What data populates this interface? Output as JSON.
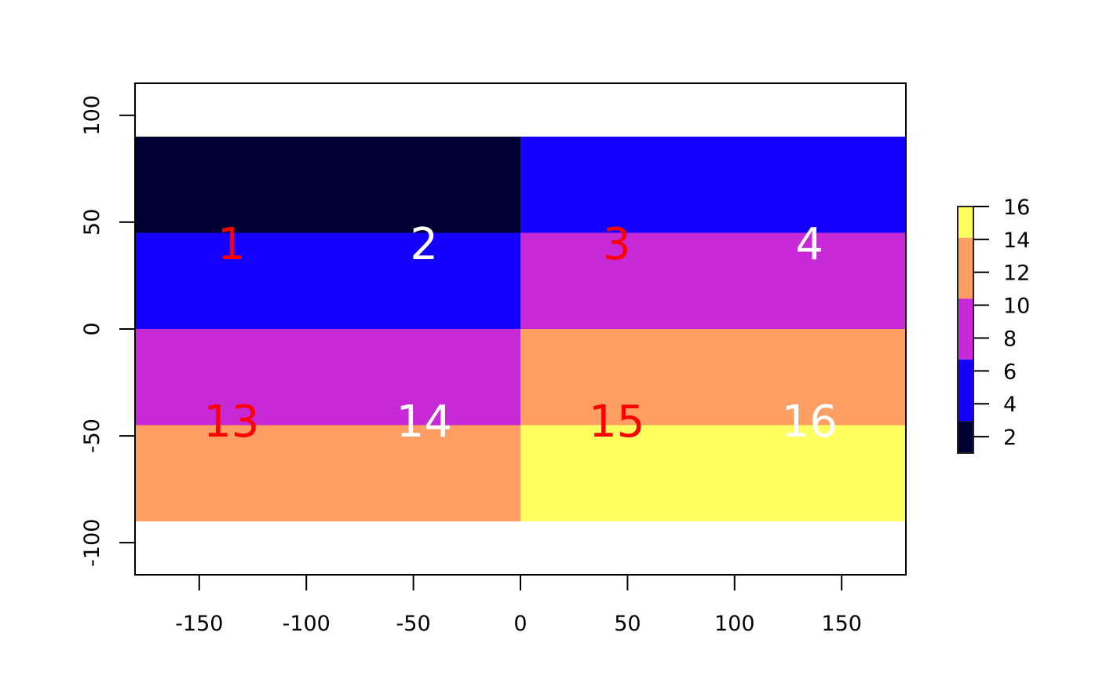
{
  "chart_data": {
    "type": "heatmap",
    "title": "",
    "xlabel": "",
    "ylabel": "",
    "xlim": [
      -180,
      180
    ],
    "ylim": [
      -115,
      115
    ],
    "grid": false,
    "x_ticks": [
      -150,
      -100,
      -50,
      0,
      50,
      100,
      150
    ],
    "x_tick_labels": [
      "-150",
      "-100",
      "-50",
      "0",
      "50",
      "100",
      "150"
    ],
    "y_ticks": [
      -100,
      -50,
      0,
      50,
      100
    ],
    "y_tick_labels": [
      "-100",
      "-50",
      "0",
      "50",
      "100"
    ],
    "cells": [
      {
        "xmin": -180,
        "xmax": 0,
        "ymin": 45,
        "ymax": 90,
        "value": 1
      },
      {
        "xmin": 0,
        "xmax": 180,
        "ymin": 45,
        "ymax": 90,
        "value": 4
      },
      {
        "xmin": -180,
        "xmax": 0,
        "ymin": 0,
        "ymax": 45,
        "value": 5
      },
      {
        "xmin": 0,
        "xmax": 180,
        "ymin": 0,
        "ymax": 45,
        "value": 8
      },
      {
        "xmin": -180,
        "xmax": 0,
        "ymin": -45,
        "ymax": 0,
        "value": 9
      },
      {
        "xmin": 0,
        "xmax": 180,
        "ymin": -45,
        "ymax": 0,
        "value": 12
      },
      {
        "xmin": -180,
        "xmax": 0,
        "ymin": -90,
        "ymax": -45,
        "value": 13
      },
      {
        "xmin": 0,
        "xmax": 180,
        "ymin": -90,
        "ymax": -45,
        "value": 16
      }
    ],
    "text_labels": [
      {
        "x": -135,
        "y": 40,
        "text": "1",
        "color": "#FF0000"
      },
      {
        "x": -45,
        "y": 40,
        "text": "2",
        "color": "#FFFFFF"
      },
      {
        "x": 45,
        "y": 40,
        "text": "3",
        "color": "#FF0000"
      },
      {
        "x": 135,
        "y": 40,
        "text": "4",
        "color": "#FFFFFF"
      },
      {
        "x": -135,
        "y": -43,
        "text": "13",
        "color": "#FF0000"
      },
      {
        "x": -45,
        "y": -43,
        "text": "14",
        "color": "#FFFFFF"
      },
      {
        "x": 45,
        "y": -43,
        "text": "15",
        "color": "#FF0000"
      },
      {
        "x": 135,
        "y": -43,
        "text": "16",
        "color": "#FFFFFF"
      }
    ],
    "legend": {
      "placement": "right",
      "range": [
        1,
        16
      ],
      "breaks": [
        1,
        2.95,
        6.7,
        10.4,
        14.1,
        16
      ],
      "colors": [
        "#000033",
        "#1400FF",
        "#C729D6",
        "#FF9E63",
        "#FFFF60"
      ],
      "ticks": [
        2,
        4,
        6,
        8,
        10,
        12,
        14,
        16
      ],
      "tick_labels": [
        "2",
        "4",
        "6",
        "8",
        "10",
        "12",
        "14",
        "16"
      ]
    }
  }
}
